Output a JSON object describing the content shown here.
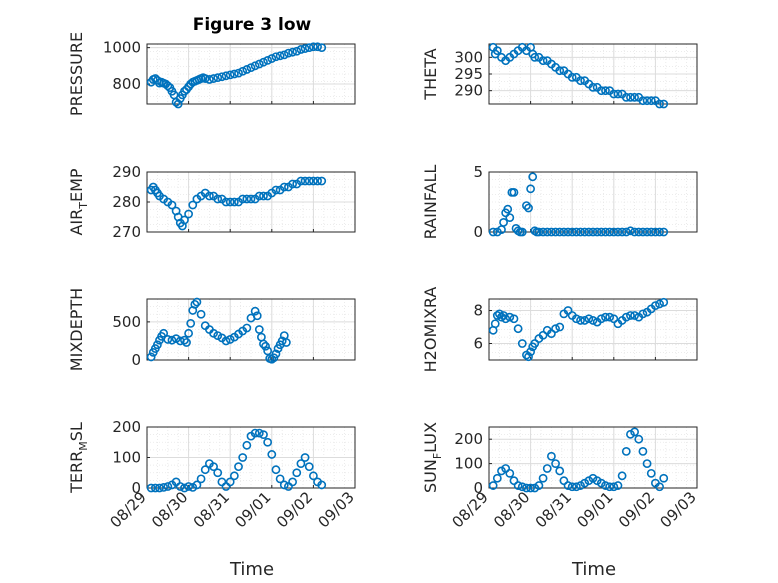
{
  "figure": {
    "title": "Figure 3 low",
    "xlabel": "Time",
    "xticks": [
      "08/29",
      "08/30",
      "08/31",
      "09/01",
      "09/02",
      "09/03"
    ],
    "marker_color": "#0072BD"
  },
  "chart_data": [
    {
      "type": "scatter",
      "name": "PRESSURE",
      "ylabel": "PRESSURE",
      "ylim": [
        690,
        1020
      ],
      "yticks": [
        800,
        1000
      ],
      "grid": true,
      "x": [
        0.1,
        0.15,
        0.2,
        0.25,
        0.3,
        0.35,
        0.4,
        0.45,
        0.5,
        0.55,
        0.6,
        0.65,
        0.7,
        0.75,
        0.8,
        0.85,
        0.9,
        0.95,
        1.0,
        1.05,
        1.1,
        1.15,
        1.2,
        1.25,
        1.3,
        1.35,
        1.4,
        1.5,
        1.6,
        1.7,
        1.8,
        1.9,
        2.0,
        2.1,
        2.2,
        2.3,
        2.4,
        2.5,
        2.6,
        2.7,
        2.8,
        2.9,
        3.0,
        3.1,
        3.2,
        3.3,
        3.4,
        3.5,
        3.6,
        3.7,
        3.8,
        3.9,
        4.0,
        4.1,
        4.2
      ],
      "y": [
        810,
        825,
        830,
        820,
        805,
        810,
        805,
        800,
        790,
        780,
        760,
        740,
        700,
        690,
        720,
        740,
        760,
        770,
        785,
        800,
        810,
        815,
        820,
        825,
        830,
        835,
        830,
        825,
        830,
        835,
        840,
        845,
        850,
        855,
        860,
        870,
        880,
        890,
        900,
        910,
        920,
        930,
        940,
        950,
        955,
        960,
        970,
        975,
        980,
        990,
        995,
        1000,
        1005,
        1005,
        1000
      ]
    },
    {
      "type": "scatter",
      "name": "THETA",
      "ylabel": "THETA",
      "ylim": [
        286,
        304
      ],
      "yticks": [
        290,
        295,
        300
      ],
      "grid": true,
      "x": [
        0.1,
        0.15,
        0.2,
        0.3,
        0.4,
        0.5,
        0.6,
        0.7,
        0.8,
        0.9,
        1.0,
        1.05,
        1.1,
        1.2,
        1.3,
        1.4,
        1.5,
        1.6,
        1.7,
        1.8,
        1.9,
        2.0,
        2.1,
        2.2,
        2.3,
        2.4,
        2.5,
        2.6,
        2.7,
        2.8,
        2.9,
        3.0,
        3.1,
        3.2,
        3.3,
        3.4,
        3.5,
        3.6,
        3.7,
        3.8,
        3.9,
        4.0,
        4.1,
        4.2
      ],
      "y": [
        303,
        301,
        302,
        300,
        299,
        300,
        301,
        302,
        303,
        302,
        303,
        301,
        300,
        300,
        299,
        299,
        298,
        297,
        296,
        296,
        295,
        294,
        294,
        293,
        293,
        292,
        291,
        291,
        290,
        290,
        290,
        289,
        289,
        289,
        288,
        288,
        288,
        288,
        287,
        287,
        287,
        287,
        286,
        286
      ]
    },
    {
      "type": "scatter",
      "name": "AIR_TEMP",
      "ylabel": "AIR_TEMP",
      "ylim": [
        270,
        290
      ],
      "yticks": [
        270,
        280,
        290
      ],
      "grid": true,
      "x": [
        0.1,
        0.15,
        0.2,
        0.25,
        0.3,
        0.4,
        0.5,
        0.6,
        0.7,
        0.75,
        0.8,
        0.85,
        0.9,
        1.0,
        1.1,
        1.2,
        1.3,
        1.4,
        1.5,
        1.6,
        1.7,
        1.8,
        1.9,
        2.0,
        2.1,
        2.2,
        2.3,
        2.4,
        2.5,
        2.6,
        2.7,
        2.8,
        2.9,
        3.0,
        3.1,
        3.2,
        3.3,
        3.4,
        3.5,
        3.6,
        3.7,
        3.8,
        3.9,
        4.0,
        4.1,
        4.2
      ],
      "y": [
        284,
        285,
        284,
        283,
        282,
        281,
        280,
        279,
        277,
        275,
        273,
        272,
        274,
        276,
        279,
        281,
        282,
        283,
        282,
        282,
        281,
        281,
        280,
        280,
        280,
        280,
        281,
        281,
        281,
        281,
        282,
        282,
        282,
        283,
        284,
        284,
        285,
        285,
        286,
        286,
        287,
        287,
        287,
        287,
        287,
        287
      ]
    },
    {
      "type": "scatter",
      "name": "RAINFALL",
      "ylabel": "RAINFALL",
      "ylim": [
        0,
        5
      ],
      "yticks": [
        0,
        5
      ],
      "grid": true,
      "x": [
        0.1,
        0.2,
        0.3,
        0.35,
        0.4,
        0.45,
        0.5,
        0.55,
        0.6,
        0.65,
        0.7,
        0.75,
        0.8,
        0.9,
        0.95,
        1.0,
        1.05,
        1.1,
        1.15,
        1.2,
        1.3,
        1.4,
        1.5,
        1.6,
        1.7,
        1.8,
        1.9,
        2.0,
        2.1,
        2.2,
        2.3,
        2.4,
        2.5,
        2.6,
        2.7,
        2.8,
        2.9,
        3.0,
        3.1,
        3.2,
        3.3,
        3.4,
        3.5,
        3.6,
        3.7,
        3.8,
        3.9,
        4.0,
        4.1,
        4.2
      ],
      "y": [
        0,
        0,
        0.2,
        0.8,
        1.6,
        1.9,
        1.2,
        3.3,
        3.3,
        0.3,
        0.1,
        0,
        0,
        2.2,
        2.0,
        3.6,
        4.6,
        0.1,
        0,
        0,
        0,
        0,
        0,
        0,
        0,
        0,
        0,
        0,
        0,
        0,
        0,
        0,
        0,
        0,
        0,
        0,
        0,
        0,
        0,
        0,
        0,
        0.1,
        0,
        0,
        0,
        0,
        0,
        0,
        0,
        0
      ]
    },
    {
      "type": "scatter",
      "name": "MIXDEPTH",
      "ylabel": "MIXDEPTH",
      "ylim": [
        0,
        800
      ],
      "yticks": [
        0,
        500
      ],
      "grid": true,
      "x": [
        0.1,
        0.15,
        0.2,
        0.25,
        0.3,
        0.35,
        0.4,
        0.5,
        0.6,
        0.7,
        0.8,
        0.9,
        0.95,
        1.0,
        1.05,
        1.1,
        1.15,
        1.2,
        1.3,
        1.4,
        1.5,
        1.6,
        1.7,
        1.8,
        1.9,
        2.0,
        2.1,
        2.2,
        2.3,
        2.4,
        2.5,
        2.6,
        2.65,
        2.7,
        2.75,
        2.8,
        2.85,
        2.9,
        2.95,
        3.0,
        3.05,
        3.1,
        3.15,
        3.2,
        3.25,
        3.3,
        3.35
      ],
      "y": [
        40,
        100,
        150,
        200,
        260,
        310,
        350,
        270,
        260,
        280,
        250,
        260,
        230,
        350,
        480,
        650,
        730,
        760,
        600,
        450,
        400,
        350,
        320,
        290,
        250,
        270,
        300,
        340,
        380,
        420,
        550,
        640,
        580,
        400,
        300,
        210,
        180,
        120,
        20,
        10,
        30,
        80,
        150,
        200,
        250,
        320,
        230
      ]
    },
    {
      "type": "scatter",
      "name": "H2OMIXRA",
      "ylabel": "H2OMIXRA",
      "ylim": [
        5,
        8.7
      ],
      "yticks": [
        6,
        8
      ],
      "grid": true,
      "x": [
        0.1,
        0.15,
        0.2,
        0.25,
        0.3,
        0.35,
        0.4,
        0.5,
        0.6,
        0.7,
        0.8,
        0.9,
        0.95,
        1.0,
        1.05,
        1.1,
        1.2,
        1.3,
        1.4,
        1.5,
        1.6,
        1.7,
        1.8,
        1.9,
        2.0,
        2.1,
        2.2,
        2.3,
        2.4,
        2.5,
        2.6,
        2.7,
        2.8,
        2.9,
        3.0,
        3.1,
        3.2,
        3.3,
        3.4,
        3.5,
        3.6,
        3.7,
        3.8,
        3.9,
        4.0,
        4.1,
        4.2
      ],
      "y": [
        6.8,
        7.2,
        7.7,
        7.8,
        7.6,
        7.7,
        7.5,
        7.6,
        7.5,
        6.9,
        6.0,
        5.3,
        5.2,
        5.5,
        5.8,
        6.0,
        6.3,
        6.5,
        6.8,
        6.6,
        6.9,
        7.0,
        7.8,
        8.0,
        7.7,
        7.5,
        7.4,
        7.4,
        7.5,
        7.4,
        7.3,
        7.5,
        7.6,
        7.6,
        7.5,
        7.2,
        7.4,
        7.6,
        7.7,
        7.7,
        7.6,
        7.8,
        7.9,
        8.1,
        8.3,
        8.4,
        8.5
      ]
    },
    {
      "type": "scatter",
      "name": "TERR_MSL",
      "ylabel": "TERR_MSL",
      "ylim": [
        0,
        200
      ],
      "yticks": [
        0,
        100,
        200
      ],
      "grid": true,
      "x": [
        0.1,
        0.2,
        0.3,
        0.4,
        0.5,
        0.6,
        0.7,
        0.8,
        0.9,
        1.0,
        1.1,
        1.2,
        1.3,
        1.4,
        1.5,
        1.6,
        1.7,
        1.8,
        1.9,
        2.0,
        2.1,
        2.2,
        2.3,
        2.4,
        2.5,
        2.6,
        2.7,
        2.8,
        2.9,
        3.0,
        3.1,
        3.2,
        3.3,
        3.4,
        3.5,
        3.6,
        3.7,
        3.8,
        3.9,
        4.0,
        4.1,
        4.2
      ],
      "y": [
        0,
        0,
        0,
        2,
        5,
        10,
        20,
        5,
        0,
        5,
        2,
        10,
        30,
        60,
        80,
        70,
        50,
        20,
        5,
        20,
        40,
        70,
        100,
        140,
        170,
        180,
        180,
        175,
        150,
        110,
        60,
        30,
        10,
        5,
        20,
        50,
        80,
        100,
        70,
        40,
        20,
        10
      ]
    },
    {
      "type": "scatter",
      "name": "SUN_FLUX",
      "ylabel": "SUN_FLUX",
      "ylim": [
        0,
        250
      ],
      "yticks": [
        0,
        100,
        200
      ],
      "grid": true,
      "x": [
        0.1,
        0.2,
        0.3,
        0.4,
        0.5,
        0.6,
        0.7,
        0.8,
        0.9,
        1.0,
        1.1,
        1.2,
        1.3,
        1.4,
        1.5,
        1.6,
        1.7,
        1.8,
        1.9,
        2.0,
        2.1,
        2.2,
        2.3,
        2.4,
        2.5,
        2.6,
        2.7,
        2.8,
        2.9,
        3.0,
        3.1,
        3.2,
        3.3,
        3.4,
        3.5,
        3.6,
        3.7,
        3.8,
        3.9,
        4.0,
        4.1,
        4.2
      ],
      "y": [
        10,
        40,
        70,
        80,
        60,
        30,
        10,
        5,
        0,
        0,
        0,
        10,
        40,
        80,
        130,
        100,
        70,
        30,
        10,
        5,
        5,
        10,
        20,
        30,
        40,
        30,
        20,
        10,
        5,
        5,
        10,
        50,
        150,
        220,
        230,
        200,
        150,
        100,
        60,
        20,
        5,
        40
      ]
    }
  ]
}
